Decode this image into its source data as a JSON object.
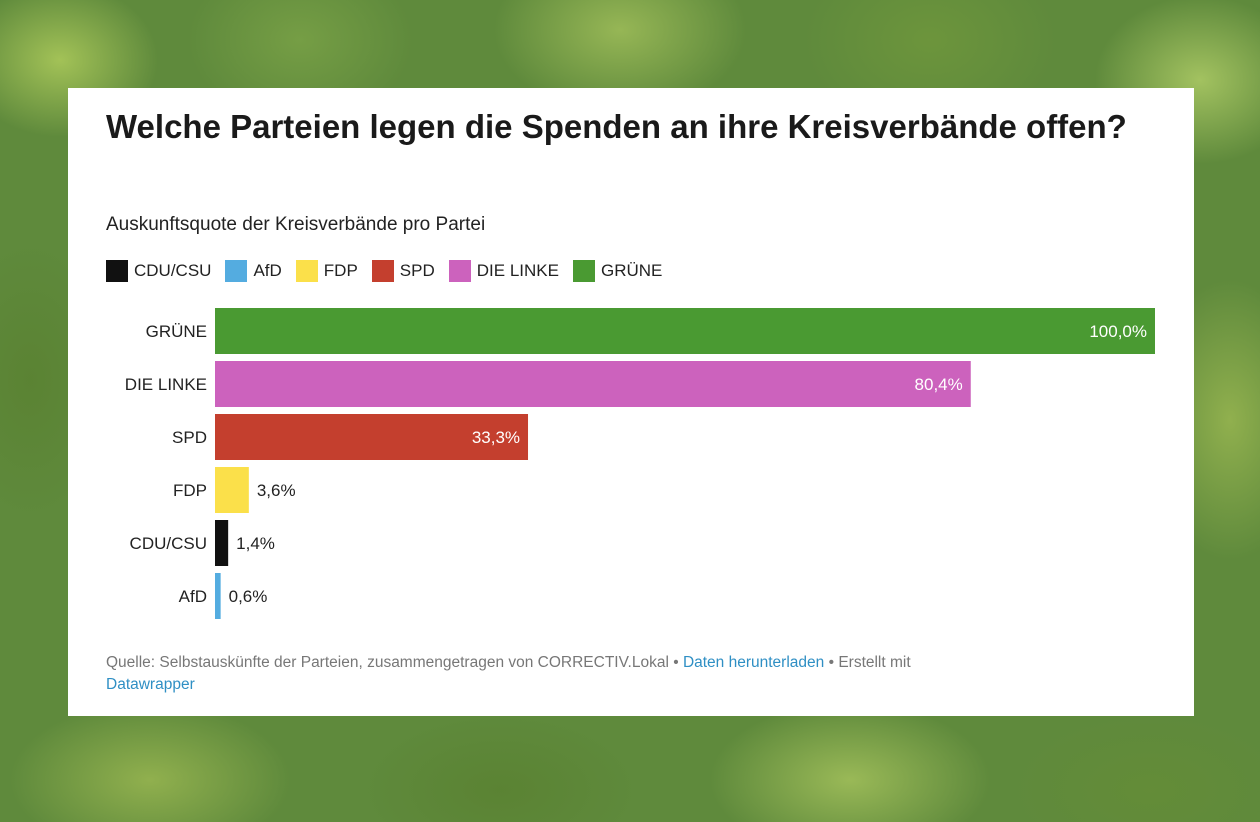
{
  "title": "Welche Parteien legen die Spenden an ihre Kreisverbände offen?",
  "subtitle": "Auskunftsquote der Kreisverbände pro Partei",
  "legend": [
    {
      "label": "CDU/CSU",
      "color": "#111111"
    },
    {
      "label": "AfD",
      "color": "#54ace0"
    },
    {
      "label": "FDP",
      "color": "#fbe04a"
    },
    {
      "label": "SPD",
      "color": "#c43f2e"
    },
    {
      "label": "DIE LINKE",
      "color": "#cc62bd"
    },
    {
      "label": "GRÜNE",
      "color": "#4a9a32"
    }
  ],
  "chart_data": {
    "type": "bar",
    "orientation": "horizontal",
    "categories": [
      "GRÜNE",
      "DIE LINKE",
      "SPD",
      "FDP",
      "CDU/CSU",
      "AfD"
    ],
    "values": [
      100.0,
      80.4,
      33.3,
      3.6,
      1.4,
      0.6
    ],
    "value_labels": [
      "100,0%",
      "80,4%",
      "33,3%",
      "3,6%",
      "1,4%",
      "0,6%"
    ],
    "colors": [
      "#4a9a32",
      "#cc62bd",
      "#c43f2e",
      "#fbe04a",
      "#111111",
      "#54ace0"
    ],
    "xlim": [
      0,
      100
    ],
    "grid": false,
    "legend_position": "top-left"
  },
  "footer": {
    "source_text": "Quelle: Selbstauskünfte der Parteien, zusammengetragen von CORRECTIV.Lokal",
    "separator": " • ",
    "download_link": "Daten herunterladen",
    "created_with": "Erstellt mit",
    "tool_link": "Datawrapper"
  }
}
